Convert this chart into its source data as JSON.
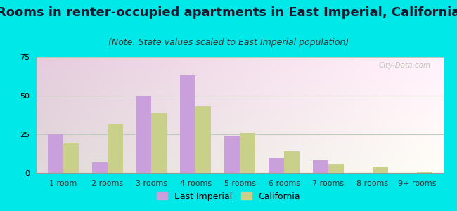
{
  "title": "Rooms in renter-occupied apartments in East Imperial, California",
  "subtitle": "(Note: State values scaled to East Imperial population)",
  "categories": [
    "1 room",
    "2 rooms",
    "3 rooms",
    "4 rooms",
    "5 rooms",
    "6 rooms",
    "7 rooms",
    "8 rooms",
    "9+ rooms"
  ],
  "east_imperial": [
    25,
    7,
    50,
    63,
    24,
    10,
    8,
    0,
    0
  ],
  "california": [
    19,
    32,
    39,
    43,
    26,
    14,
    6,
    4,
    1
  ],
  "ei_color": "#c9a0dc",
  "ca_color": "#c8d08a",
  "bg_color_outer": "#00e8e8",
  "bg_color_inner_topleft": "#d6e8d0",
  "bg_color_inner_topright": "#f0f8f0",
  "bg_color_inner_bottom": "#e8f4e0",
  "ylim": [
    0,
    75
  ],
  "yticks": [
    0,
    25,
    50,
    75
  ],
  "title_fontsize": 13,
  "subtitle_fontsize": 9,
  "legend_label_ei": "East Imperial",
  "legend_label_ca": "California",
  "bar_width": 0.35,
  "grid_color": "#bbccbb",
  "tick_fontsize": 8,
  "title_color": "#1a1a2e",
  "subtitle_color": "#333333"
}
